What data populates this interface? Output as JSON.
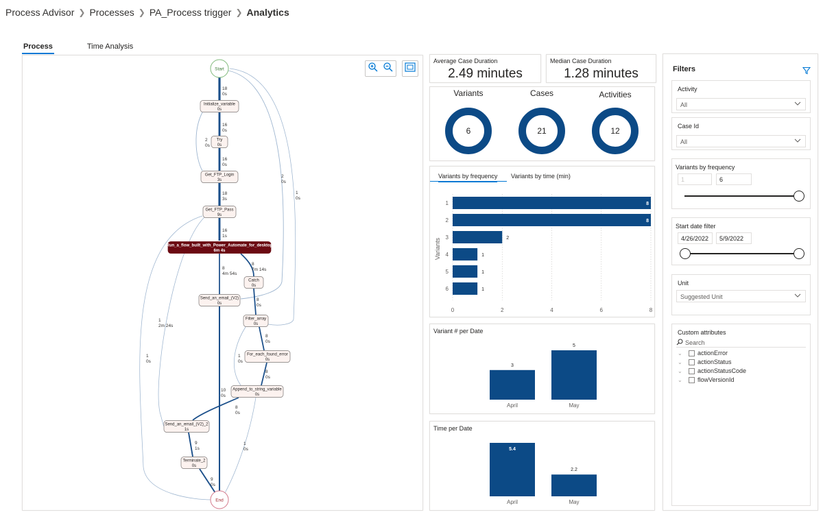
{
  "breadcrumb": {
    "items": [
      "Process Advisor",
      "Processes",
      "PA_Process trigger"
    ],
    "current": "Analytics"
  },
  "tabs": [
    {
      "label": "Process",
      "active": true
    },
    {
      "label": "Time Analysis",
      "active": false
    }
  ],
  "process_map": {
    "nodes": [
      {
        "id": "start",
        "label": "Start",
        "kind": "start"
      },
      {
        "id": "init",
        "label": "Initialize_variable",
        "time": "0s"
      },
      {
        "id": "try",
        "label": "Try",
        "time": "0s"
      },
      {
        "id": "login",
        "label": "Get_FTP_Login",
        "time": "3s"
      },
      {
        "id": "pass",
        "label": "Get_FTP_Pass",
        "time": "9s"
      },
      {
        "id": "run",
        "label": "Run_a_flow_built_with_Power_Automate_for_desktop",
        "time": "6m 4s",
        "kind": "hot"
      },
      {
        "id": "catch",
        "label": "Catch",
        "time": "0s"
      },
      {
        "id": "send1",
        "label": "Send_an_email_(V2)",
        "time": "0s"
      },
      {
        "id": "filter",
        "label": "Filter_array",
        "time": "0s"
      },
      {
        "id": "foreach",
        "label": "For_each_found_error",
        "time": "0s"
      },
      {
        "id": "append",
        "label": "Append_to_string_variable",
        "time": "0s"
      },
      {
        "id": "send2",
        "label": "Send_an_email_(V2)_2",
        "time": "1s"
      },
      {
        "id": "term",
        "label": "Terminate_2",
        "time": "0s"
      },
      {
        "id": "end",
        "label": "End",
        "kind": "end"
      }
    ],
    "edges": [
      {
        "from": "start",
        "to": "init",
        "count": "18",
        "time": "0s"
      },
      {
        "from": "init",
        "to": "try",
        "count": "16",
        "time": "0s"
      },
      {
        "from": "init",
        "to": "login",
        "count": "2",
        "time": "0s"
      },
      {
        "from": "try",
        "to": "login",
        "count": "16",
        "time": "0s"
      },
      {
        "from": "login",
        "to": "pass",
        "count": "18",
        "time": "3s"
      },
      {
        "from": "pass",
        "to": "run",
        "count": "16",
        "time": "1s"
      },
      {
        "from": "run",
        "to": "send1",
        "count": "8",
        "time": "4m 54s"
      },
      {
        "from": "run",
        "to": "catch",
        "count": "8",
        "time": "7m 14s"
      },
      {
        "from": "start",
        "to": "send1",
        "count": "2",
        "time": "0s"
      },
      {
        "from": "start",
        "to": "filter",
        "count": "1",
        "time": "0s"
      },
      {
        "from": "catch",
        "to": "filter",
        "count": "8",
        "time": "0s"
      },
      {
        "from": "pass",
        "to": "send2",
        "count": "1",
        "time": "2m 24s"
      },
      {
        "from": "pass",
        "to": "end",
        "count": "1",
        "time": "0s"
      },
      {
        "from": "filter",
        "to": "foreach",
        "count": "8",
        "time": "0s"
      },
      {
        "from": "filter",
        "to": "append",
        "count": "1",
        "time": "0s"
      },
      {
        "from": "foreach",
        "to": "append",
        "count": "8",
        "time": "0s"
      },
      {
        "from": "send1",
        "to": "end",
        "count": "10",
        "time": "0s"
      },
      {
        "from": "append",
        "to": "send2",
        "count": "8",
        "time": "0s"
      },
      {
        "from": "append",
        "to": "end",
        "count": "1",
        "time": "0s"
      },
      {
        "from": "send2",
        "to": "term",
        "count": "9",
        "time": "1s"
      },
      {
        "from": "term",
        "to": "end",
        "count": "9",
        "time": "0s"
      }
    ]
  },
  "kpis": {
    "avg": {
      "label": "Average Case Duration",
      "value": "2.49 minutes"
    },
    "median": {
      "label": "Median Case Duration",
      "value": "1.28 minutes"
    }
  },
  "donuts": [
    {
      "label": "Variants",
      "value": "6"
    },
    {
      "label": "Cases",
      "value": "21"
    },
    {
      "label": "Activities",
      "value": "12"
    }
  ],
  "variants_chart": {
    "tabs": [
      {
        "label": "Variants by frequency",
        "active": true
      },
      {
        "label": "Variants by time (min)",
        "active": false
      }
    ],
    "ylabel": "Variants"
  },
  "variant_date": {
    "title": "Variant # per Date"
  },
  "time_date": {
    "title": "Time per Date"
  },
  "chart_data": [
    {
      "type": "bar",
      "orientation": "horizontal",
      "categories": [
        "1",
        "2",
        "3",
        "4",
        "5",
        "6"
      ],
      "values": [
        8,
        8,
        2,
        1,
        1,
        1
      ],
      "ylabel": "Variants",
      "xlim": [
        0,
        8
      ],
      "xticks": [
        "0",
        "2",
        "4",
        "6",
        "8"
      ],
      "grid": true
    },
    {
      "type": "bar",
      "title": "Variant # per Date",
      "categories": [
        "April",
        "May"
      ],
      "values": [
        3,
        5
      ]
    },
    {
      "type": "bar",
      "title": "Time per Date",
      "categories": [
        "April",
        "May"
      ],
      "values": [
        5.4,
        2.2
      ]
    }
  ],
  "filters": {
    "title": "Filters",
    "activity": {
      "label": "Activity",
      "value": "All"
    },
    "case_id": {
      "label": "Case Id",
      "value": "All"
    },
    "variants_freq": {
      "label": "Variants by frequency",
      "min": "1",
      "max": "6"
    },
    "start_date": {
      "label": "Start date filter",
      "from": "4/26/2022",
      "to": "5/9/2022"
    },
    "unit": {
      "label": "Unit",
      "value": "Suggested Unit"
    },
    "custom": {
      "label": "Custom attributes",
      "search_placeholder": "Search",
      "items": [
        "actionError",
        "actionStatus",
        "actionStatusCode",
        "flowVersionId"
      ]
    }
  },
  "colors": {
    "accent": "#0078d4",
    "bar": "#0c4a86",
    "hot_node": "#6b0a12",
    "node_fill": "#fcf2ef",
    "edge": "#1b4f8a"
  }
}
